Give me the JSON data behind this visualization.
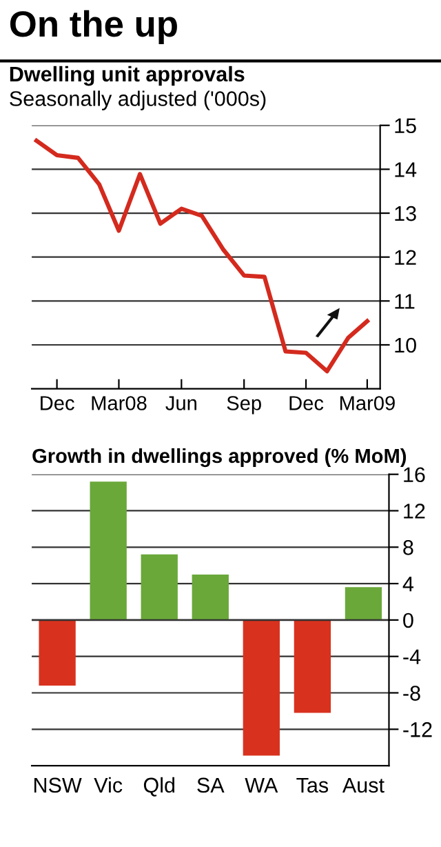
{
  "chart_data": [
    {
      "type": "line",
      "title": "On the up",
      "subtitle": "Dwelling unit approvals",
      "ylabel": "Seasonally adjusted ('000s)",
      "x": [
        "2007-11",
        "2007-12",
        "2008-01",
        "2008-02",
        "2008-03",
        "2008-04",
        "2008-05",
        "2008-06",
        "2008-07",
        "2008-08",
        "2008-09",
        "2008-10",
        "2008-11",
        "2008-12",
        "2009-01",
        "2009-02",
        "2009-03"
      ],
      "series": [
        {
          "color": "#d42a1e",
          "values": [
            14.65,
            14.32,
            14.26,
            13.66,
            12.6,
            13.89,
            12.76,
            13.1,
            12.94,
            12.18,
            11.58,
            11.55,
            9.85,
            9.82,
            9.4,
            10.16,
            10.54
          ]
        }
      ],
      "xlim": [
        "2007-10-25",
        "2009-03-20"
      ],
      "ylim": [
        9,
        15
      ],
      "yticks": [
        10,
        11,
        12,
        13,
        14,
        15
      ],
      "xticks": [
        {
          "value": "2007-12",
          "label": "Dec"
        },
        {
          "value": "2008-03",
          "label": "Mar08"
        },
        {
          "value": "2008-06",
          "label": "Jun"
        },
        {
          "value": "2008-09",
          "label": "Sep"
        },
        {
          "value": "2008-12",
          "label": "Dec"
        },
        {
          "value": "2009-03",
          "label": "Mar09"
        }
      ],
      "grid": "y",
      "legend": false,
      "marker": "none",
      "line_style": "solid"
    },
    {
      "type": "bar",
      "title": "Growth in dwellings approved (% MoM)",
      "categories": [
        "NSW",
        "Vic",
        "Qld",
        "SA",
        "WA",
        "Tas",
        "Aust"
      ],
      "values": [
        -7.2,
        15.2,
        7.2,
        5.0,
        -14.9,
        -10.2,
        3.6
      ],
      "colors": [
        "#d8321e",
        "#6aa83a",
        "#6aa83a",
        "#6aa83a",
        "#d8321e",
        "#d8321e",
        "#6aa83a"
      ],
      "ylim": [
        -16,
        16
      ],
      "yticks": [
        16,
        12,
        8,
        4,
        0,
        -4,
        -8,
        -12
      ],
      "grid": "y",
      "legend": false
    }
  ]
}
